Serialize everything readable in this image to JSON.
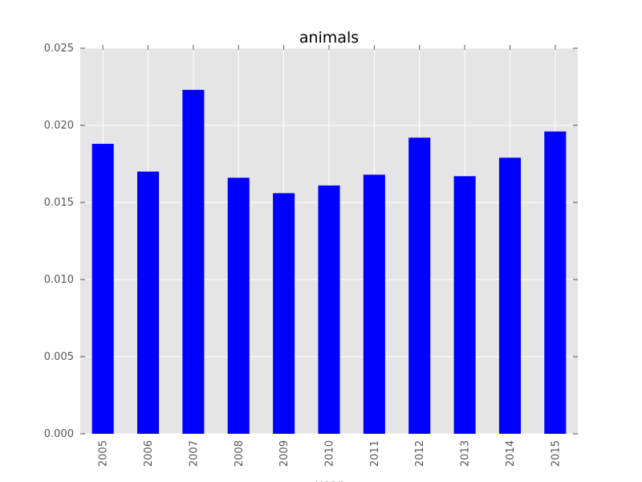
{
  "chart_data": {
    "type": "bar",
    "title": "animals",
    "xlabel": "year",
    "ylabel": "",
    "categories": [
      "2005",
      "2006",
      "2007",
      "2008",
      "2009",
      "2010",
      "2011",
      "2012",
      "2013",
      "2014",
      "2015"
    ],
    "values": [
      0.0188,
      0.017,
      0.0223,
      0.0166,
      0.0156,
      0.0161,
      0.0168,
      0.0192,
      0.0167,
      0.0179,
      0.0196
    ],
    "ylim": [
      0,
      0.025
    ],
    "yticks": [
      "0.000",
      "0.005",
      "0.010",
      "0.015",
      "0.020",
      "0.025"
    ],
    "ytick_values": [
      0,
      0.005,
      0.01,
      0.015,
      0.02,
      0.025
    ],
    "grid": true,
    "legend": "none",
    "bar_color": "#0000ff",
    "plot_background": "#e5e5e5"
  }
}
